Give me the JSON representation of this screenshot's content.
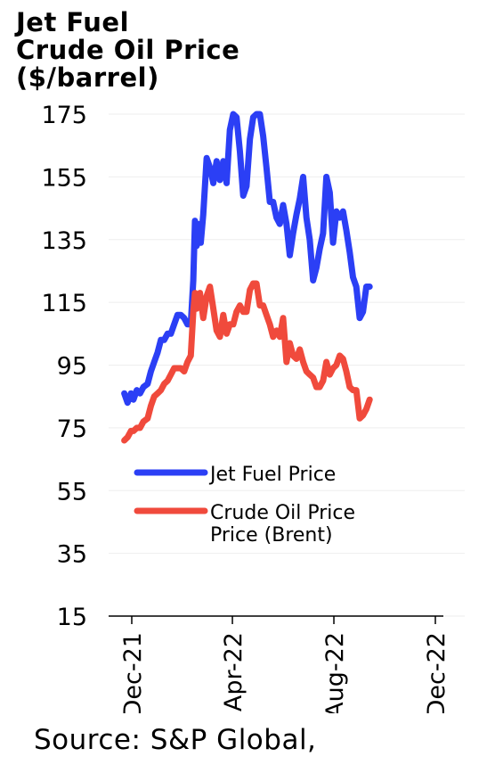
{
  "chart_data": {
    "type": "line",
    "title_lines": [
      "Jet Fuel",
      "Crude Oil Price",
      "($/barrel)"
    ],
    "x_ticks": [
      "Dec-21",
      "Apr-22",
      "Aug-22",
      "Dec-22"
    ],
    "y_ticks": [
      "175",
      "155",
      "135",
      "115",
      "95",
      "75",
      "55",
      "35",
      "15"
    ],
    "ylim": [
      15,
      175
    ],
    "legend_position": "center",
    "series": [
      {
        "name": "Jet Fuel Price",
        "color": "#2b3ff5",
        "points": [
          [
            "2021-11-22",
            86
          ],
          [
            "2021-11-26",
            83
          ],
          [
            "2021-11-30",
            86
          ],
          [
            "2021-12-03",
            84
          ],
          [
            "2021-12-07",
            87
          ],
          [
            "2021-12-11",
            86
          ],
          [
            "2021-12-15",
            88
          ],
          [
            "2021-12-20",
            89
          ],
          [
            "2021-12-24",
            93
          ],
          [
            "2021-12-28",
            96
          ],
          [
            "2022-01-01",
            99
          ],
          [
            "2022-01-05",
            103
          ],
          [
            "2022-01-09",
            103
          ],
          [
            "2022-01-13",
            105
          ],
          [
            "2022-01-17",
            105
          ],
          [
            "2022-01-21",
            108
          ],
          [
            "2022-01-25",
            111
          ],
          [
            "2022-01-29",
            111
          ],
          [
            "2022-02-02",
            110
          ],
          [
            "2022-02-06",
            108
          ],
          [
            "2022-02-10",
            108
          ],
          [
            "2022-02-13",
            122
          ],
          [
            "2022-02-15",
            141
          ],
          [
            "2022-02-17",
            133
          ],
          [
            "2022-02-19",
            140
          ],
          [
            "2022-02-22",
            134
          ],
          [
            "2022-02-25",
            143
          ],
          [
            "2022-03-01",
            161
          ],
          [
            "2022-03-05",
            158
          ],
          [
            "2022-03-09",
            153
          ],
          [
            "2022-03-13",
            160
          ],
          [
            "2022-03-17",
            154
          ],
          [
            "2022-03-21",
            160
          ],
          [
            "2022-03-25",
            153
          ],
          [
            "2022-03-29",
            170
          ],
          [
            "2022-04-02",
            175
          ],
          [
            "2022-04-06",
            174
          ],
          [
            "2022-04-10",
            163
          ],
          [
            "2022-04-14",
            149
          ],
          [
            "2022-04-18",
            152
          ],
          [
            "2022-04-22",
            167
          ],
          [
            "2022-04-26",
            174
          ],
          [
            "2022-04-30",
            175
          ],
          [
            "2022-05-04",
            175
          ],
          [
            "2022-05-08",
            168
          ],
          [
            "2022-05-12",
            158
          ],
          [
            "2022-05-16",
            147
          ],
          [
            "2022-05-20",
            147
          ],
          [
            "2022-05-24",
            142
          ],
          [
            "2022-05-28",
            140
          ],
          [
            "2022-06-01",
            146
          ],
          [
            "2022-06-05",
            140
          ],
          [
            "2022-06-09",
            130
          ],
          [
            "2022-06-13",
            137
          ],
          [
            "2022-06-17",
            143
          ],
          [
            "2022-06-21",
            148
          ],
          [
            "2022-06-25",
            155
          ],
          [
            "2022-06-29",
            142
          ],
          [
            "2022-07-03",
            135
          ],
          [
            "2022-07-07",
            122
          ],
          [
            "2022-07-11",
            126
          ],
          [
            "2022-07-15",
            132
          ],
          [
            "2022-07-19",
            137
          ],
          [
            "2022-07-23",
            155
          ],
          [
            "2022-07-27",
            150
          ],
          [
            "2022-07-31",
            134
          ],
          [
            "2022-08-04",
            144
          ],
          [
            "2022-08-08",
            142
          ],
          [
            "2022-08-12",
            144
          ],
          [
            "2022-08-16",
            138
          ],
          [
            "2022-08-20",
            131
          ],
          [
            "2022-08-24",
            123
          ],
          [
            "2022-08-28",
            120
          ],
          [
            "2022-09-01",
            110
          ],
          [
            "2022-09-05",
            112
          ],
          [
            "2022-09-09",
            120
          ],
          [
            "2022-09-13",
            120
          ]
        ]
      },
      {
        "name": "Crude Oil Price Price (Brent)",
        "label_lines": [
          "Crude Oil Price",
          "Price (Brent)"
        ],
        "color": "#f04a3c",
        "points": [
          [
            "2021-11-22",
            71
          ],
          [
            "2021-11-26",
            72
          ],
          [
            "2021-11-30",
            74
          ],
          [
            "2021-12-03",
            74
          ],
          [
            "2021-12-07",
            75
          ],
          [
            "2021-12-11",
            75
          ],
          [
            "2021-12-15",
            77
          ],
          [
            "2021-12-20",
            78
          ],
          [
            "2021-12-24",
            82
          ],
          [
            "2021-12-28",
            85
          ],
          [
            "2022-01-01",
            86
          ],
          [
            "2022-01-05",
            87
          ],
          [
            "2022-01-09",
            89
          ],
          [
            "2022-01-13",
            90
          ],
          [
            "2022-01-17",
            92
          ],
          [
            "2022-01-21",
            94
          ],
          [
            "2022-01-25",
            94
          ],
          [
            "2022-01-29",
            94
          ],
          [
            "2022-02-02",
            93
          ],
          [
            "2022-02-06",
            96
          ],
          [
            "2022-02-10",
            98
          ],
          [
            "2022-02-13",
            112
          ],
          [
            "2022-02-15",
            118
          ],
          [
            "2022-02-17",
            113
          ],
          [
            "2022-02-21",
            118
          ],
          [
            "2022-02-25",
            110
          ],
          [
            "2022-03-01",
            117
          ],
          [
            "2022-03-05",
            120
          ],
          [
            "2022-03-09",
            113
          ],
          [
            "2022-03-13",
            106
          ],
          [
            "2022-03-17",
            104
          ],
          [
            "2022-03-21",
            111
          ],
          [
            "2022-03-25",
            105
          ],
          [
            "2022-03-29",
            108
          ],
          [
            "2022-04-02",
            108
          ],
          [
            "2022-04-06",
            112
          ],
          [
            "2022-04-10",
            114
          ],
          [
            "2022-04-14",
            112
          ],
          [
            "2022-04-18",
            112
          ],
          [
            "2022-04-22",
            119
          ],
          [
            "2022-04-26",
            121
          ],
          [
            "2022-04-30",
            121
          ],
          [
            "2022-05-04",
            114
          ],
          [
            "2022-05-08",
            114
          ],
          [
            "2022-05-12",
            111
          ],
          [
            "2022-05-16",
            108
          ],
          [
            "2022-05-20",
            104
          ],
          [
            "2022-05-24",
            106
          ],
          [
            "2022-05-28",
            104
          ],
          [
            "2022-06-01",
            110
          ],
          [
            "2022-06-05",
            96
          ],
          [
            "2022-06-09",
            102
          ],
          [
            "2022-06-13",
            98
          ],
          [
            "2022-06-17",
            97
          ],
          [
            "2022-06-21",
            100
          ],
          [
            "2022-06-25",
            96
          ],
          [
            "2022-06-29",
            93
          ],
          [
            "2022-07-03",
            92
          ],
          [
            "2022-07-07",
            91
          ],
          [
            "2022-07-11",
            88
          ],
          [
            "2022-07-15",
            88
          ],
          [
            "2022-07-19",
            90
          ],
          [
            "2022-07-23",
            96
          ],
          [
            "2022-07-27",
            92
          ],
          [
            "2022-07-31",
            94
          ],
          [
            "2022-08-04",
            95
          ],
          [
            "2022-08-08",
            98
          ],
          [
            "2022-08-12",
            97
          ],
          [
            "2022-08-16",
            93
          ],
          [
            "2022-08-20",
            88
          ],
          [
            "2022-08-24",
            87
          ],
          [
            "2022-08-28",
            87
          ],
          [
            "2022-09-01",
            78
          ],
          [
            "2022-09-05",
            79
          ],
          [
            "2022-09-09",
            81
          ],
          [
            "2022-09-13",
            84
          ]
        ]
      }
    ]
  },
  "source": "Source: S&P Global,"
}
